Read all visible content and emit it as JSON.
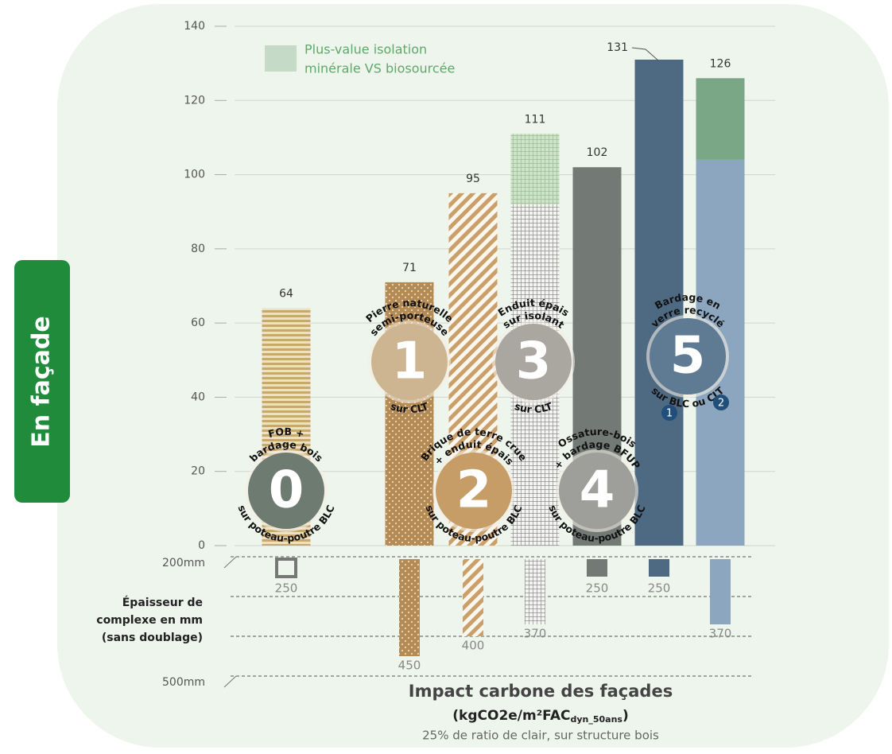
{
  "side_label": "En façade",
  "chart_data": {
    "type": "bar",
    "title": "Impact carbone des façades",
    "unit_main": "(kgCO2e/m²FAC",
    "unit_sub": "dyn_50ans",
    "unit_end": ")",
    "subtitle": "25% de ratio de clair, sur structure bois",
    "categories": [
      null,
      null,
      null,
      null,
      null,
      null,
      null
    ],
    "series": [
      {
        "name": null,
        "values": [
          64,
          71,
          95,
          92,
          102,
          131,
          104
        ]
      },
      {
        "name": "Plus-value isolation minérale VS biosourcée",
        "legend_lines": [
          "Plus-value isolation",
          "minérale VS biosourcée"
        ],
        "color": "#7aa886",
        "values": [
          null,
          null,
          null,
          19,
          null,
          null,
          22
        ]
      }
    ],
    "totals": [
      64,
      71,
      95,
      111,
      102,
      131,
      126
    ],
    "ylim": [
      0,
      140
    ],
    "yticks": [
      0,
      20,
      40,
      60,
      80,
      100,
      120,
      140
    ],
    "grid": true,
    "thickness": {
      "label_lines": [
        "Épaisseur de",
        "complexe en mm",
        "(sans doublage)"
      ],
      "values": [
        250,
        450,
        400,
        370,
        250,
        250,
        370
      ],
      "ylim": [
        200,
        500
      ],
      "yticks": [
        {
          "value": 200,
          "label": "200mm"
        },
        {
          "value": 500,
          "label": "500mm"
        }
      ]
    },
    "circles": [
      {
        "number": "0",
        "top": [
          "FOB +",
          "bardage bois"
        ],
        "bottom": "sur poteau-poutre BLC"
      },
      {
        "number": "1",
        "top": [
          "Pierre naturelle",
          "semi-porteuse"
        ],
        "bottom": "sur CLT"
      },
      {
        "number": "2",
        "top": [
          "Brique de terre crue",
          "+ enduit épais"
        ],
        "bottom": "sur poteau-poutre BLC"
      },
      {
        "number": "3",
        "top": [
          "Enduit épais",
          "sur isolant"
        ],
        "bottom": "sur CLT"
      },
      {
        "number": "4",
        "top": [
          "Ossature-bois",
          "+ bardage BFUP"
        ],
        "bottom": "sur poteau-poutre BLC"
      },
      {
        "number": "5",
        "top": [
          "Bardage en",
          "verre recyclé"
        ],
        "bottom": "sur BLC ou CLT",
        "badges": [
          "1",
          "2"
        ]
      }
    ]
  }
}
